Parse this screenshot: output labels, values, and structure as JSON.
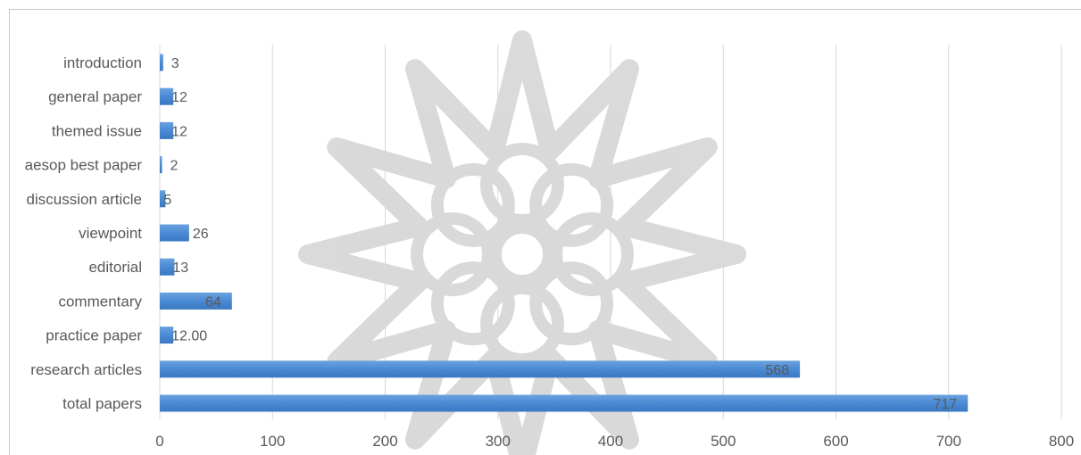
{
  "chart_data": {
    "type": "bar",
    "orientation": "horizontal",
    "categories": [
      "introduction",
      "general paper",
      "themed issue",
      "aesop best paper",
      "discussion article",
      "viewpoint",
      "editorial",
      "commentary",
      "practice paper",
      "research articles",
      "total papers"
    ],
    "values": [
      3,
      12,
      12,
      2,
      5,
      26,
      13,
      64,
      12,
      568,
      717
    ],
    "data_labels": [
      "3",
      "12",
      "12",
      "2",
      "5",
      "26",
      "13",
      "64",
      "12.00",
      "568",
      "717"
    ],
    "title": "",
    "xlabel": "",
    "ylabel": "",
    "xlim": [
      0,
      800
    ],
    "x_ticks": [
      "0",
      "100",
      "200",
      "300",
      "400",
      "500",
      "600",
      "700",
      "800"
    ],
    "grid": "vertical",
    "legend": "none",
    "bar_color": "#4a8ad4",
    "bar_highlight": "#7fb0e6",
    "grid_color": "#d9d9d9",
    "text_color": "#595959",
    "watermark": "decorative-star-rosette"
  }
}
